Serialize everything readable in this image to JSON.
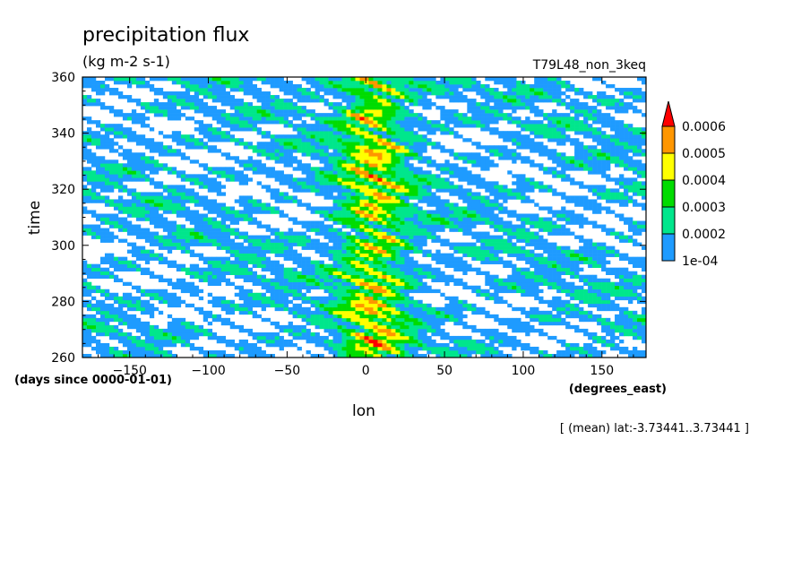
{
  "chart_data": {
    "type": "heatmap",
    "title": "precipitation flux",
    "units": "(kg m-2 s-1)",
    "run_label": "T79L48_non_3keq",
    "xlabel": "lon",
    "x_units": "(degrees_east)",
    "ylabel": "time",
    "y_units": "(days since 0000-01-01)",
    "subset_note": "[ (mean) lat:-3.73441..3.73441 ]",
    "xlim": [
      -180,
      178
    ],
    "ylim": [
      260,
      360
    ],
    "x_ticks": [
      -150,
      -100,
      -50,
      0,
      50,
      100,
      150
    ],
    "x_tick_labels": [
      "−150",
      "−100",
      "−50",
      "0",
      "50",
      "100",
      "150"
    ],
    "y_ticks": [
      260,
      280,
      300,
      320,
      340,
      360
    ],
    "y_tick_labels": [
      "260",
      "280",
      "300",
      "320",
      "340",
      "360"
    ],
    "colorbar": {
      "levels": [
        0.0001,
        0.0002,
        0.0003,
        0.0004,
        0.0005,
        0.0006
      ],
      "labels": [
        "1e-04",
        "0.0002",
        "0.0003",
        "0.0004",
        "0.0005",
        "0.0006"
      ],
      "colors": [
        "#1e9bff",
        "#00e68c",
        "#00dc00",
        "#ffff00",
        "#ff9600",
        "#ff0000"
      ],
      "extend": "max"
    },
    "features": {
      "convective_band_center_lon": 5,
      "convective_band_halfwidth_deg": 22
    }
  }
}
